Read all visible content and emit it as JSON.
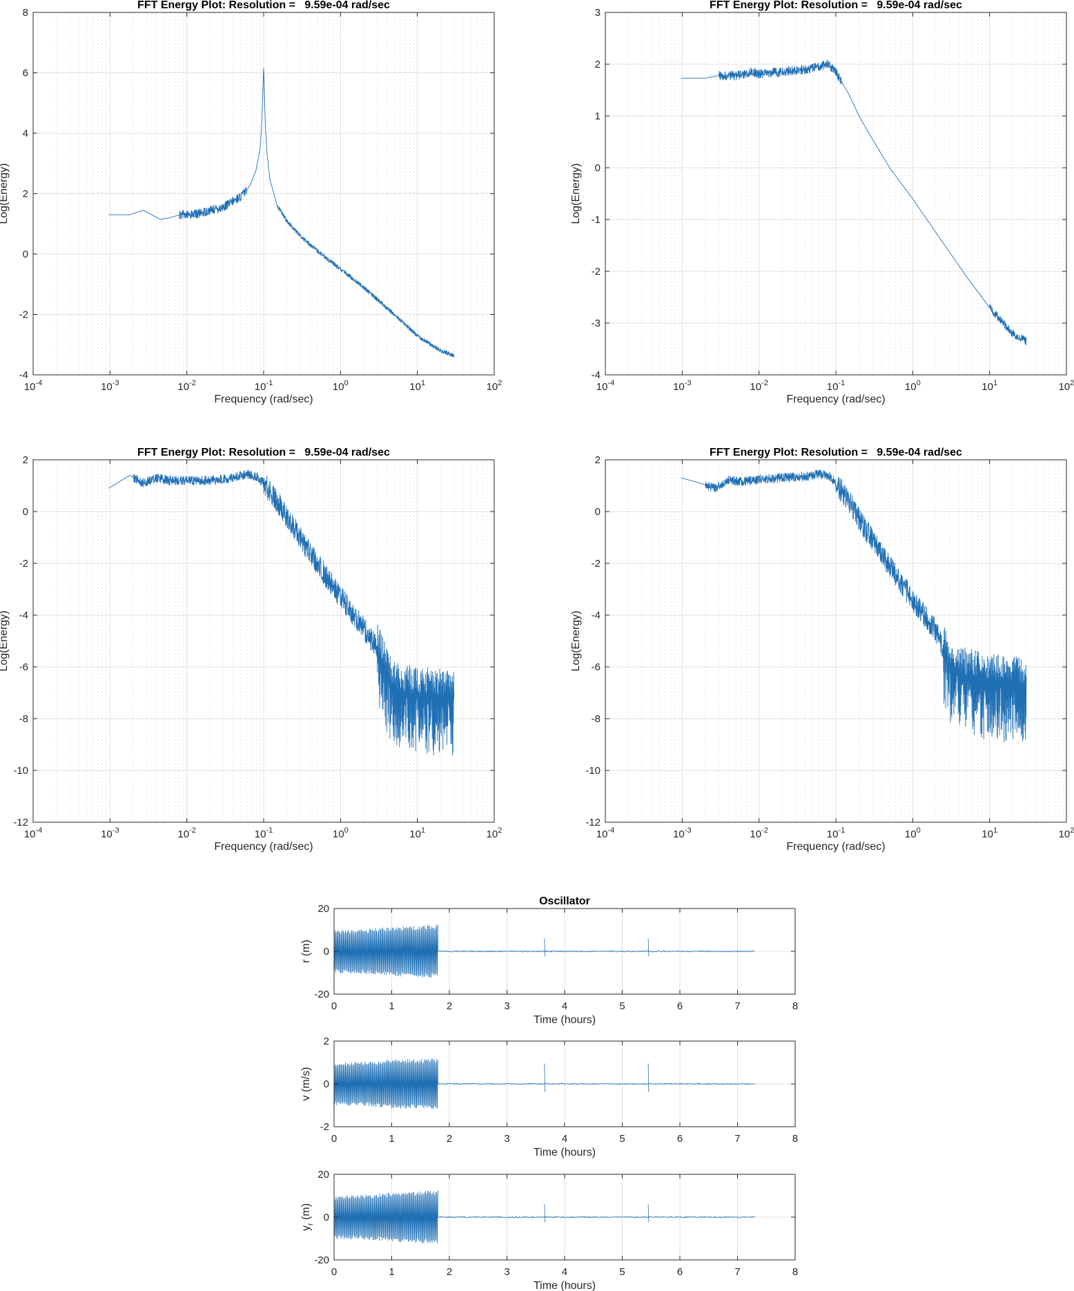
{
  "colors": {
    "series": "#1f6fb5",
    "grid": "#e0e0e0",
    "axis": "#262626"
  },
  "chart_data": [
    {
      "id": "fft1",
      "type": "line",
      "xscale": "log",
      "title": "FFT Energy Plot: Resolution =   9.59e-04 rad/sec",
      "xlabel": "Frequency (rad/sec)",
      "ylabel": "Log(Energy)",
      "xlim": [
        0.0001,
        100
      ],
      "ylim": [
        -4,
        8
      ],
      "xticks": [
        0.0001,
        0.001,
        0.01,
        0.1,
        1,
        10,
        100
      ],
      "xtick_labels": [
        [
          "10",
          "-4"
        ],
        [
          "10",
          "-3"
        ],
        [
          "10",
          "-2"
        ],
        [
          "10",
          "-1"
        ],
        [
          "10",
          "0"
        ],
        [
          "10",
          "1"
        ],
        [
          "10",
          "2"
        ]
      ],
      "yticks": [
        -4,
        -2,
        0,
        2,
        4,
        6,
        8
      ],
      "ytick_labels": [
        "-4",
        "-2",
        "0",
        "2",
        "4",
        "6",
        "8"
      ],
      "series": [
        {
          "name": "Energy",
          "x": [
            0.00096,
            0.0018,
            0.0027,
            0.0035,
            0.0045,
            0.006,
            0.008,
            0.01,
            0.015,
            0.02,
            0.03,
            0.04,
            0.05,
            0.06,
            0.07,
            0.08,
            0.09,
            0.095,
            0.1,
            0.105,
            0.11,
            0.12,
            0.15,
            0.2,
            0.3,
            0.5,
            1,
            2,
            5,
            10,
            20,
            30
          ],
          "y": [
            1.3,
            1.3,
            1.45,
            1.3,
            1.15,
            1.2,
            1.3,
            1.3,
            1.35,
            1.45,
            1.55,
            1.75,
            1.9,
            2.1,
            2.4,
            2.8,
            3.5,
            4.5,
            6.2,
            4.3,
            3.4,
            2.5,
            1.6,
            1.1,
            0.6,
            0.1,
            -0.5,
            -1.1,
            -2.0,
            -2.7,
            -3.2,
            -3.35
          ]
        }
      ],
      "noise": [
        {
          "from": 0.008,
          "to": 0.06,
          "amp": 0.15
        },
        {
          "from": 0.15,
          "to": 30,
          "amp": 0.07
        }
      ]
    },
    {
      "id": "fft2",
      "type": "line",
      "xscale": "log",
      "title": "FFT Energy Plot: Resolution =   9.59e-04 rad/sec",
      "xlabel": "Frequency (rad/sec)",
      "ylabel": "Log(Energy)",
      "xlim": [
        0.0001,
        100
      ],
      "ylim": [
        -4,
        3
      ],
      "xticks": [
        0.0001,
        0.001,
        0.01,
        0.1,
        1,
        10,
        100
      ],
      "xtick_labels": [
        [
          "10",
          "-4"
        ],
        [
          "10",
          "-3"
        ],
        [
          "10",
          "-2"
        ],
        [
          "10",
          "-1"
        ],
        [
          "10",
          "0"
        ],
        [
          "10",
          "1"
        ],
        [
          "10",
          "2"
        ]
      ],
      "yticks": [
        -4,
        -3,
        -2,
        -1,
        0,
        1,
        2,
        3
      ],
      "ytick_labels": [
        "-4",
        "-3",
        "-2",
        "-1",
        "0",
        "1",
        "2",
        "3"
      ],
      "series": [
        {
          "name": "Energy",
          "x": [
            0.00096,
            0.002,
            0.003,
            0.005,
            0.008,
            0.01,
            0.02,
            0.04,
            0.06,
            0.08,
            0.1,
            0.15,
            0.2,
            0.3,
            0.5,
            1,
            2,
            5,
            10,
            20,
            30
          ],
          "y": [
            1.73,
            1.73,
            1.78,
            1.78,
            1.85,
            1.82,
            1.85,
            1.9,
            1.95,
            2.0,
            1.85,
            1.4,
            1.0,
            0.55,
            0.0,
            -0.6,
            -1.25,
            -2.1,
            -2.7,
            -3.2,
            -3.35
          ]
        }
      ],
      "noise": [
        {
          "from": 0.003,
          "to": 0.12,
          "amp": 0.09
        },
        {
          "from": 10,
          "to": 30,
          "amp": 0.08
        }
      ]
    },
    {
      "id": "fft3",
      "type": "line",
      "xscale": "log",
      "title": "FFT Energy Plot: Resolution =   9.59e-04 rad/sec",
      "xlabel": "Frequency (rad/sec)",
      "ylabel": "Log(Energy)",
      "xlim": [
        0.0001,
        100
      ],
      "ylim": [
        -12,
        2
      ],
      "xticks": [
        0.0001,
        0.001,
        0.01,
        0.1,
        1,
        10,
        100
      ],
      "xtick_labels": [
        [
          "10",
          "-4"
        ],
        [
          "10",
          "-3"
        ],
        [
          "10",
          "-2"
        ],
        [
          "10",
          "-1"
        ],
        [
          "10",
          "0"
        ],
        [
          "10",
          "1"
        ],
        [
          "10",
          "2"
        ]
      ],
      "yticks": [
        -12,
        -10,
        -8,
        -6,
        -4,
        -2,
        0,
        2
      ],
      "ytick_labels": [
        "-12",
        "-10",
        "-8",
        "-6",
        "-4",
        "-2",
        "0",
        "2"
      ],
      "series": [
        {
          "name": "Energy",
          "x": [
            0.00096,
            0.0018,
            0.0027,
            0.004,
            0.006,
            0.01,
            0.02,
            0.04,
            0.06,
            0.08,
            0.1,
            0.15,
            0.2,
            0.3,
            0.5,
            1,
            2,
            3,
            4,
            5,
            10,
            20,
            30
          ],
          "y": [
            0.9,
            1.4,
            1.1,
            1.3,
            1.2,
            1.2,
            1.2,
            1.3,
            1.45,
            1.35,
            1.1,
            0.4,
            -0.2,
            -1.0,
            -2.0,
            -3.3,
            -4.5,
            -5.3,
            -6.3,
            -6.9,
            -7.1,
            -7.2,
            -7.2
          ]
        }
      ],
      "noise": [
        {
          "from": 0.002,
          "to": 0.1,
          "amp": 0.18
        },
        {
          "from": 0.1,
          "to": 3,
          "amp": 0.45
        },
        {
          "from": 3,
          "to": 30,
          "amp": 1.6
        }
      ]
    },
    {
      "id": "fft4",
      "type": "line",
      "xscale": "log",
      "title": "FFT Energy Plot: Resolution =   9.59e-04 rad/sec",
      "xlabel": "Frequency (rad/sec)",
      "ylabel": "Log(Energy)",
      "xlim": [
        0.0001,
        100
      ],
      "ylim": [
        -12,
        2
      ],
      "xticks": [
        0.0001,
        0.001,
        0.01,
        0.1,
        1,
        10,
        100
      ],
      "xtick_labels": [
        [
          "10",
          "-4"
        ],
        [
          "10",
          "-3"
        ],
        [
          "10",
          "-2"
        ],
        [
          "10",
          "-1"
        ],
        [
          "10",
          "0"
        ],
        [
          "10",
          "1"
        ],
        [
          "10",
          "2"
        ]
      ],
      "yticks": [
        -12,
        -10,
        -8,
        -6,
        -4,
        -2,
        0,
        2
      ],
      "ytick_labels": [
        "-12",
        "-10",
        "-8",
        "-6",
        "-4",
        "-2",
        "0",
        "2"
      ],
      "series": [
        {
          "name": "Energy",
          "x": [
            0.00096,
            0.0015,
            0.0027,
            0.004,
            0.006,
            0.01,
            0.02,
            0.04,
            0.06,
            0.08,
            0.1,
            0.15,
            0.2,
            0.3,
            0.5,
            1,
            2,
            2.5,
            3,
            5,
            10,
            20,
            30
          ],
          "y": [
            1.3,
            1.15,
            0.9,
            1.2,
            1.15,
            1.25,
            1.3,
            1.35,
            1.45,
            1.4,
            1.1,
            0.4,
            -0.3,
            -1.1,
            -2.1,
            -3.4,
            -4.6,
            -5.3,
            -6.0,
            -6.4,
            -6.6,
            -6.7,
            -6.8
          ]
        }
      ],
      "noise": [
        {
          "from": 0.002,
          "to": 0.1,
          "amp": 0.18
        },
        {
          "from": 0.1,
          "to": 2.5,
          "amp": 0.45
        },
        {
          "from": 2.5,
          "to": 30,
          "amp": 1.6
        }
      ]
    },
    {
      "id": "osc_r",
      "type": "line",
      "xscale": "linear",
      "title": "Oscillator",
      "xlabel": "Time (hours)",
      "ylabel": "r (m)",
      "xlim": [
        0,
        8
      ],
      "ylim": [
        -20,
        20
      ],
      "xticks": [
        0,
        1,
        2,
        3,
        4,
        5,
        6,
        7,
        8
      ],
      "xtick_labels": [
        "0",
        "1",
        "2",
        "3",
        "4",
        "5",
        "6",
        "7",
        "8"
      ],
      "yticks": [
        -20,
        0,
        20
      ],
      "ytick_labels": [
        "-20",
        "0",
        "20"
      ],
      "series": [
        {
          "name": "r",
          "envelope": [
            [
              0,
              10
            ],
            [
              0.6,
              10.5
            ],
            [
              1.0,
              11.5
            ],
            [
              1.8,
              12.5
            ]
          ],
          "burst_end": 1.8,
          "end": 7.3,
          "spikes": [
            [
              3.65,
              6
            ],
            [
              5.45,
              6
            ]
          ],
          "residual": 0.3
        }
      ]
    },
    {
      "id": "osc_v",
      "type": "line",
      "xscale": "linear",
      "title": "",
      "xlabel": "Time (hours)",
      "ylabel": "v (m/s)",
      "xlim": [
        0,
        8
      ],
      "ylim": [
        -2,
        2
      ],
      "xticks": [
        0,
        1,
        2,
        3,
        4,
        5,
        6,
        7,
        8
      ],
      "xtick_labels": [
        "0",
        "1",
        "2",
        "3",
        "4",
        "5",
        "6",
        "7",
        "8"
      ],
      "yticks": [
        -2,
        0,
        2
      ],
      "ytick_labels": [
        "-2",
        "0",
        "2"
      ],
      "series": [
        {
          "name": "v",
          "envelope": [
            [
              0,
              1.0
            ],
            [
              0.6,
              1.05
            ],
            [
              1.0,
              1.15
            ],
            [
              1.8,
              1.2
            ]
          ],
          "burst_end": 1.8,
          "end": 7.3,
          "spikes": [
            [
              3.65,
              0.95
            ],
            [
              5.45,
              0.95
            ]
          ],
          "residual": 0.03
        }
      ]
    },
    {
      "id": "osc_y",
      "type": "line",
      "xscale": "linear",
      "title": "",
      "xlabel": "Time (hours)",
      "ylabel": "y (m)",
      "ylabel_sub": "r",
      "xlim": [
        0,
        8
      ],
      "ylim": [
        -20,
        20
      ],
      "xticks": [
        0,
        1,
        2,
        3,
        4,
        5,
        6,
        7,
        8
      ],
      "xtick_labels": [
        "0",
        "1",
        "2",
        "3",
        "4",
        "5",
        "6",
        "7",
        "8"
      ],
      "yticks": [
        -20,
        0,
        20
      ],
      "ytick_labels": [
        "-20",
        "0",
        "20"
      ],
      "series": [
        {
          "name": "y_r",
          "envelope": [
            [
              0,
              10
            ],
            [
              0.6,
              10.5
            ],
            [
              1.0,
              11.5
            ],
            [
              1.8,
              12.5
            ]
          ],
          "burst_end": 1.8,
          "end": 7.3,
          "spikes": [
            [
              3.65,
              6
            ],
            [
              5.45,
              6
            ]
          ],
          "residual": 0.3
        }
      ]
    }
  ]
}
